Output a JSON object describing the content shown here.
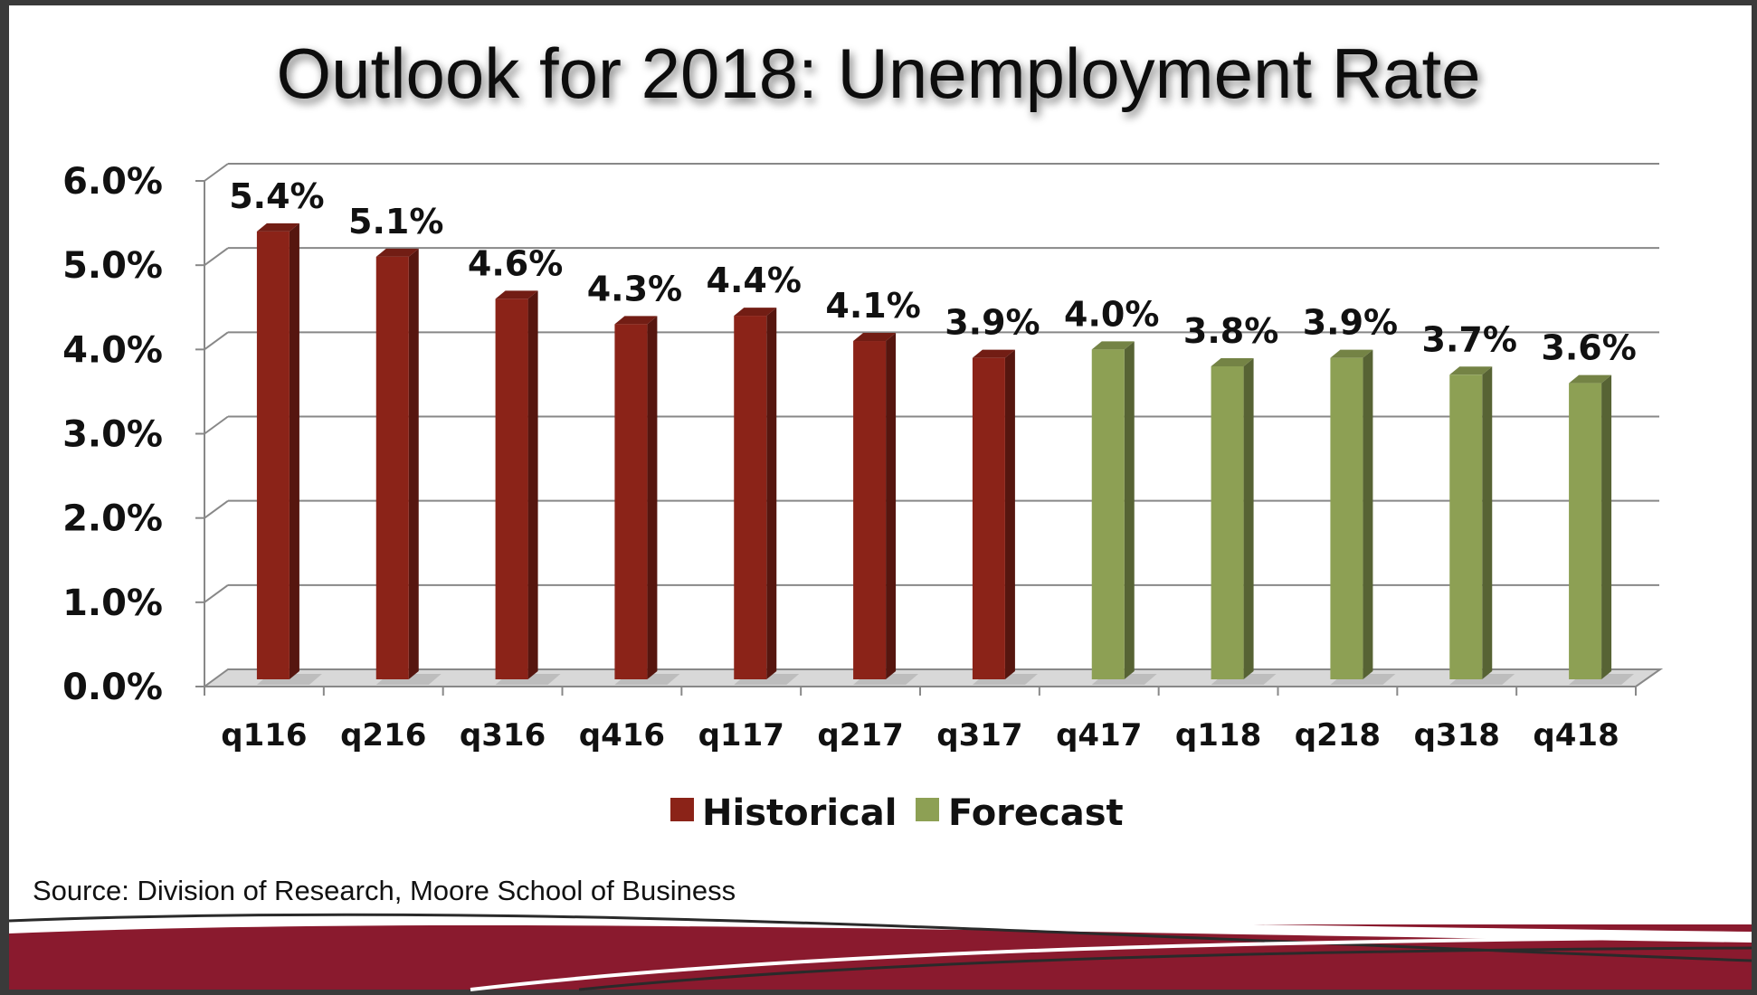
{
  "title": "Outlook for 2018: Unemployment Rate",
  "source": "Source: Division of Research, Moore School of Business",
  "colors": {
    "historical": "#8b2318",
    "forecast": "#8da054",
    "brand_band": "#8a1a2e",
    "background": "#ffffff"
  },
  "chart_data": {
    "type": "bar",
    "categories": [
      "q116",
      "q216",
      "q316",
      "q416",
      "q117",
      "q217",
      "q317",
      "q417",
      "q118",
      "q218",
      "q318",
      "q418"
    ],
    "values": [
      5.4,
      5.1,
      4.6,
      4.3,
      4.4,
      4.1,
      3.9,
      4.0,
      3.8,
      3.9,
      3.7,
      3.6
    ],
    "value_labels": [
      "5.4%",
      "5.1%",
      "4.6%",
      "4.3%",
      "4.4%",
      "4.1%",
      "3.9%",
      "4.0%",
      "3.8%",
      "3.9%",
      "3.7%",
      "3.6%"
    ],
    "series": [
      {
        "name": "Historical",
        "categories": [
          "q116",
          "q216",
          "q316",
          "q416",
          "q117",
          "q217",
          "q317"
        ]
      },
      {
        "name": "Forecast",
        "categories": [
          "q417",
          "q118",
          "q218",
          "q318",
          "q418"
        ]
      }
    ],
    "yticks": [
      "0.0%",
      "1.0%",
      "2.0%",
      "3.0%",
      "4.0%",
      "5.0%",
      "6.0%"
    ],
    "ylim": [
      0,
      6
    ],
    "grid": true,
    "legend_position": "bottom",
    "xlabel": "",
    "ylabel": ""
  }
}
